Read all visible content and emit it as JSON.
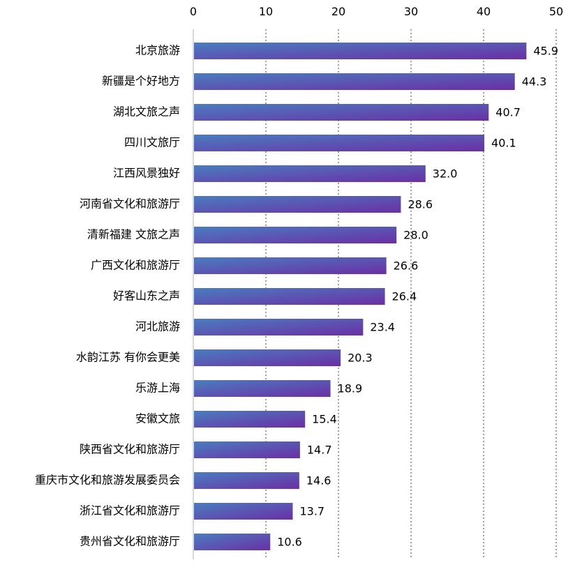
{
  "chart_data": {
    "type": "bar",
    "orientation": "horizontal",
    "title": "",
    "xlabel": "",
    "ylabel": "",
    "xlim": [
      0,
      50
    ],
    "ticks": [
      0,
      10,
      20,
      30,
      40,
      50
    ],
    "tick_labels": [
      "0",
      "10",
      "20",
      "30",
      "40",
      "50"
    ],
    "axis_position": "top",
    "grid": "vertical dotted",
    "colors": {
      "bar_start": "#4a7dbf",
      "bar_end": "#6a2fa5"
    },
    "categories": [
      "北京旅游",
      "新疆是个好地方",
      "湖北文旅之声",
      "四川文旅厅",
      "江西风景独好",
      "河南省文化和旅游厅",
      "清新福建 文旅之声",
      "广西文化和旅游厅",
      "好客山东之声",
      "河北旅游",
      "水韵江苏 有你会更美",
      "乐游上海",
      "安徽文旅",
      "陕西省文化和旅游厅",
      "重庆市文化和旅游发展委员会",
      "浙江省文化和旅游厅",
      "贵州省文化和旅游厅"
    ],
    "values": [
      45.9,
      44.3,
      40.7,
      40.1,
      32.0,
      28.6,
      28.0,
      26.6,
      26.4,
      23.4,
      20.3,
      18.9,
      15.4,
      14.7,
      14.6,
      13.7,
      10.6
    ],
    "value_labels": [
      "45.9",
      "44.3",
      "40.7",
      "40.1",
      "32.0",
      "28.6",
      "28.0",
      "26.6",
      "26.4",
      "23.4",
      "20.3",
      "18.9",
      "15.4",
      "14.7",
      "14.6",
      "13.7",
      "10.6"
    ]
  }
}
